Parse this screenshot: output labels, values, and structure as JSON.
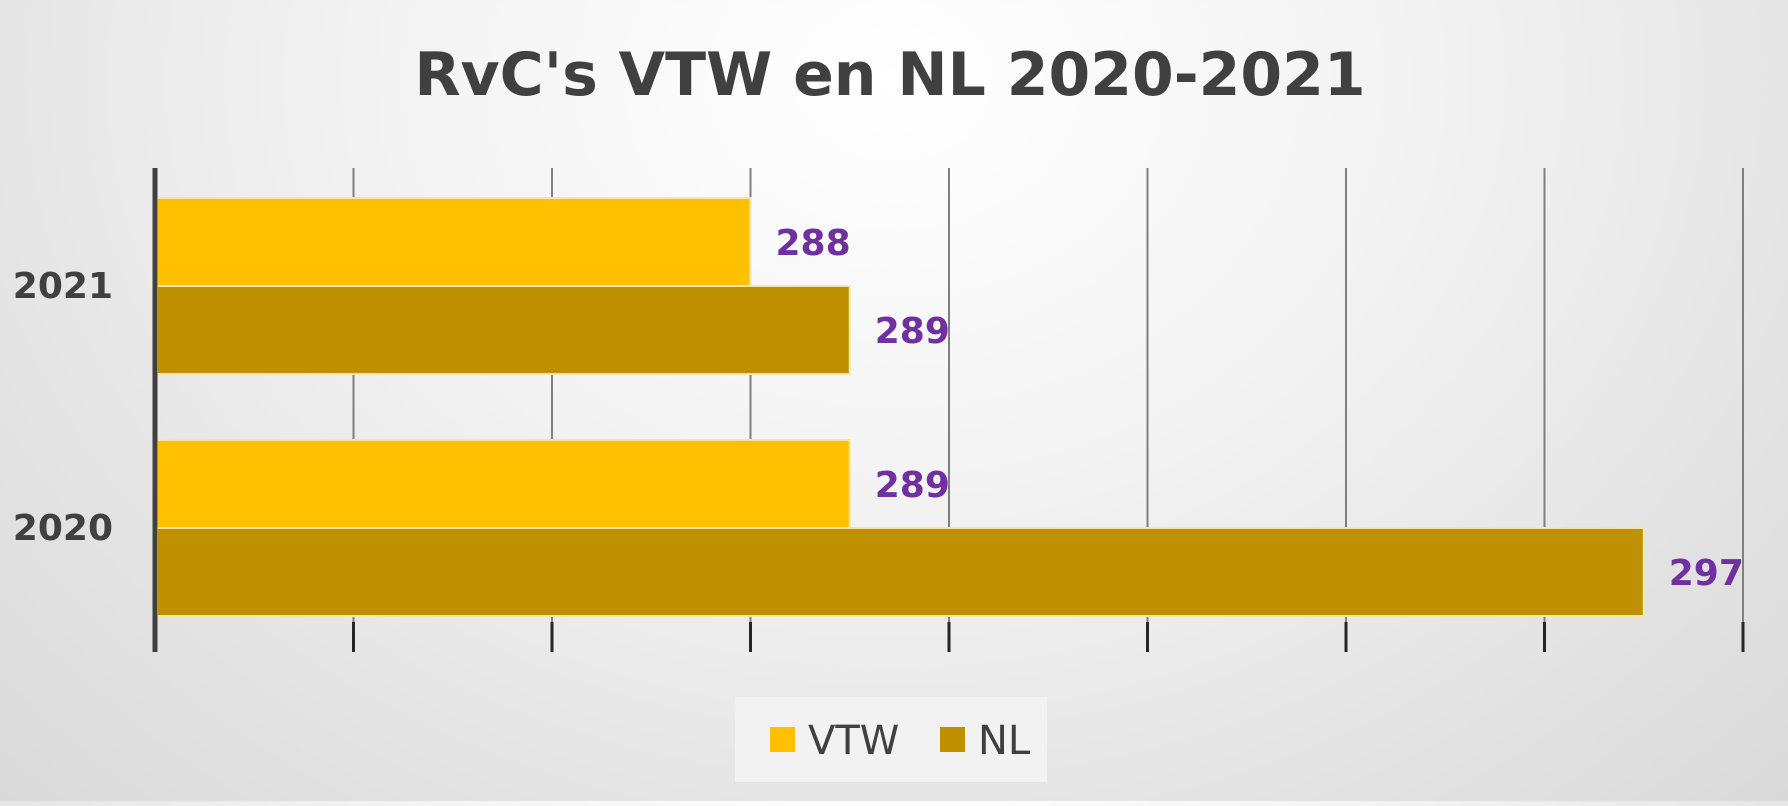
{
  "chart_data": {
    "type": "bar",
    "orientation": "horizontal",
    "title": "RvC's VTW en NL 2020-2021",
    "categories": [
      "2021",
      "2020"
    ],
    "series": [
      {
        "name": "VTW",
        "values": [
          288,
          289
        ],
        "color": "#ffc000"
      },
      {
        "name": "NL",
        "values": [
          289,
          297
        ],
        "color": "#bf9000"
      }
    ],
    "xlim": [
      282,
      298
    ],
    "x_gridline_step": 2,
    "grid": true,
    "data_labels": true,
    "legend": {
      "position": "bottom",
      "entries": [
        "VTW",
        "NL"
      ]
    },
    "data_label_color": "#7030a0"
  }
}
